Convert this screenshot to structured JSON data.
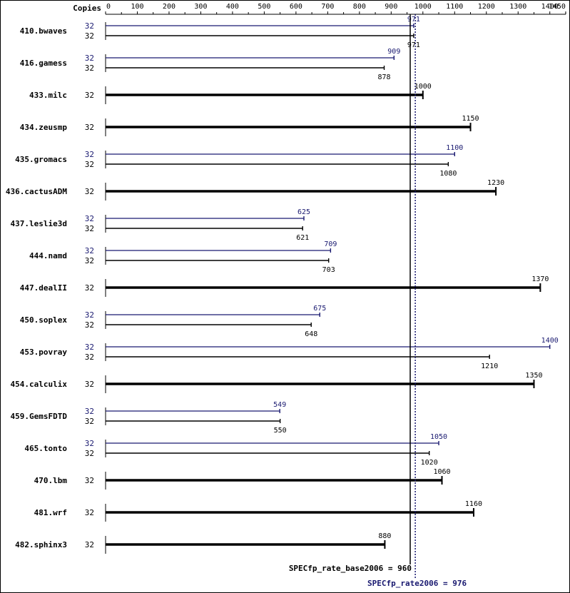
{
  "chart_data": {
    "type": "bar",
    "orientation": "horizontal",
    "title": "",
    "xlabel": "",
    "ylabel": "",
    "copies_header": "Copies",
    "xlim": [
      0,
      1450
    ],
    "x_ticks": [
      0,
      100,
      200,
      300,
      400,
      500,
      600,
      700,
      800,
      900,
      1000,
      1100,
      1200,
      1300,
      1400,
      1450
    ],
    "grid": false,
    "colors": {
      "base": "#000000",
      "peak": "#191970"
    },
    "categories": [
      "410.bwaves",
      "416.gamess",
      "433.milc",
      "434.zeusmp",
      "435.gromacs",
      "436.cactusADM",
      "437.leslie3d",
      "444.namd",
      "447.dealII",
      "450.soplex",
      "453.povray",
      "454.calculix",
      "459.GemsFDTD",
      "465.tonto",
      "470.lbm",
      "481.wrf",
      "482.sphinx3"
    ],
    "series": [
      {
        "name": "",
        "role": "peak",
        "copies": [
          "32",
          "32",
          null,
          null,
          "32",
          null,
          "32",
          "32",
          null,
          "32",
          "32",
          null,
          "32",
          "32",
          null,
          null,
          null
        ],
        "values": [
          971,
          909,
          null,
          null,
          1100,
          null,
          625,
          709,
          null,
          675,
          1400,
          null,
          549,
          1050,
          null,
          null,
          null
        ],
        "labels": [
          "971",
          "909",
          null,
          null,
          "1100",
          null,
          "625",
          "709",
          null,
          "675",
          "1400",
          null,
          "549",
          "1050",
          null,
          null,
          null
        ]
      },
      {
        "name": "",
        "role": "base",
        "copies": [
          "32",
          "32",
          "32",
          "32",
          "32",
          "32",
          "32",
          "32",
          "32",
          "32",
          "32",
          "32",
          "32",
          "32",
          "32",
          "32",
          "32"
        ],
        "values": [
          971,
          878,
          1000,
          1150,
          1080,
          1230,
          621,
          703,
          1370,
          648,
          1210,
          1350,
          550,
          1020,
          1060,
          1160,
          880
        ],
        "labels": [
          "971",
          "878",
          "1000",
          "1150",
          "1080",
          "1230",
          "621",
          "703",
          "1370",
          "648",
          "1210",
          "1350",
          "550",
          "1020",
          "1060",
          "1160",
          "880"
        ]
      }
    ],
    "reference_lines": [
      {
        "role": "base",
        "value": 960,
        "label": "SPECfp_rate_base2006 = 960",
        "style": "solid"
      },
      {
        "role": "peak",
        "value": 976,
        "label": "SPECfp_rate2006 = 976",
        "style": "dotted"
      }
    ]
  }
}
